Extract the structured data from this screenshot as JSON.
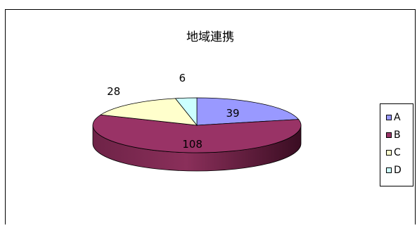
{
  "chart_data": {
    "type": "pie",
    "title": "地域連携",
    "categories": [
      "A",
      "B",
      "C",
      "D"
    ],
    "values": [
      39,
      108,
      28,
      6
    ],
    "colors": [
      "#9999ff",
      "#993366",
      "#ffffcc",
      "#ccffff"
    ],
    "legend_position": "right",
    "style": "3d"
  }
}
